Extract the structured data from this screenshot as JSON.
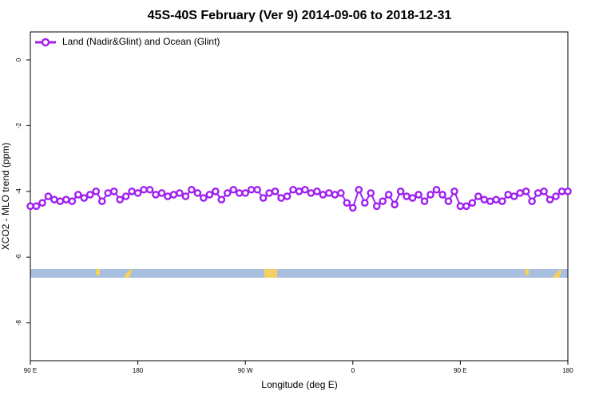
{
  "chart_data": {
    "type": "line",
    "title": "45S-40S February (Ver 9)   2014-09-06 to 2018-12-31",
    "xlabel": "Longitude (deg E)",
    "ylabel": "XCO2 - MLO trend (ppm)",
    "xlim": [
      90,
      540
    ],
    "ylim": [
      -9.15,
      0.85
    ],
    "xticks": [
      {
        "value": 90,
        "label": "90 E"
      },
      {
        "value": 180,
        "label": "180"
      },
      {
        "value": 270,
        "label": "90 W"
      },
      {
        "value": 360,
        "label": "0"
      },
      {
        "value": 450,
        "label": "90 E"
      },
      {
        "value": 540,
        "label": "180"
      }
    ],
    "yticks": [
      0,
      -2,
      -4,
      -6,
      -8
    ],
    "legend": "top-left",
    "x": [
      90,
      95,
      100,
      105,
      110,
      115,
      120,
      125,
      130,
      135,
      140,
      145,
      150,
      155,
      160,
      165,
      170,
      175,
      180,
      185,
      190,
      195,
      200,
      205,
      210,
      215,
      220,
      225,
      230,
      235,
      240,
      245,
      250,
      255,
      260,
      265,
      270,
      275,
      280,
      285,
      290,
      295,
      300,
      305,
      310,
      315,
      320,
      325,
      330,
      335,
      340,
      345,
      350,
      355,
      360,
      365,
      370,
      375,
      380,
      385,
      390,
      395,
      400,
      405,
      410,
      415,
      420,
      425,
      430,
      435,
      440,
      445,
      450,
      455,
      460,
      465,
      470,
      475,
      480,
      485,
      490,
      495,
      500,
      505,
      510,
      515,
      520,
      525,
      530,
      535,
      540
    ],
    "series": [
      {
        "name": "Land (Nadir&Glint) and Ocean (Glint)",
        "color": "#a020f0",
        "values": [
          -4.45,
          -4.45,
          -4.35,
          -4.15,
          -4.25,
          -4.3,
          -4.25,
          -4.3,
          -4.1,
          -4.2,
          -4.1,
          -4.0,
          -4.3,
          -4.05,
          -4.0,
          -4.25,
          -4.15,
          -4.0,
          -4.05,
          -3.95,
          -3.95,
          -4.1,
          -4.05,
          -4.15,
          -4.1,
          -4.05,
          -4.15,
          -3.95,
          -4.05,
          -4.2,
          -4.1,
          -4.0,
          -4.25,
          -4.05,
          -3.95,
          -4.05,
          -4.05,
          -3.95,
          -3.95,
          -4.2,
          -4.05,
          -4.0,
          -4.2,
          -4.15,
          -3.95,
          -4.0,
          -3.95,
          -4.05,
          -4.0,
          -4.1,
          -4.05,
          -4.1,
          -4.05,
          -4.35,
          -4.5,
          -3.95,
          -4.35,
          -4.05,
          -4.45,
          -4.3,
          -4.1,
          -4.4,
          -4.0,
          -4.15,
          -4.2,
          -4.1,
          -4.3,
          -4.1,
          -3.95,
          -4.1,
          -4.3,
          -4.0,
          -4.45,
          -4.45,
          -4.35,
          -4.15,
          -4.25,
          -4.3,
          -4.25,
          -4.3,
          -4.1,
          -4.15,
          -4.05,
          -4.0,
          -4.3,
          -4.05,
          -4.0,
          -4.25,
          -4.15,
          -4.0,
          -4.0
        ]
      }
    ]
  }
}
